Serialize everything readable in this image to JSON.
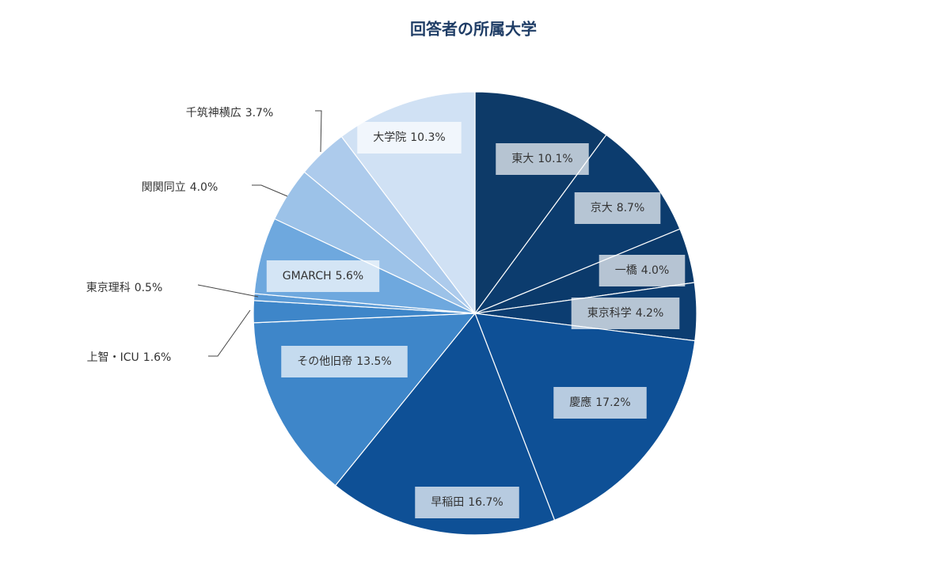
{
  "chart_data": {
    "type": "pie",
    "title": "回答者の所属大学",
    "categories": [
      "東大",
      "京大",
      "一橋",
      "東京科学",
      "慶應",
      "早稲田",
      "その他旧帝",
      "上智・ICU",
      "東京理科",
      "GMARCH",
      "関関同立",
      "千筑神横広",
      "大学院"
    ],
    "values": [
      10.1,
      8.7,
      4.0,
      4.2,
      17.2,
      16.7,
      13.5,
      1.6,
      0.5,
      5.6,
      4.0,
      3.7,
      10.3
    ],
    "value_labels": [
      "10.1%",
      "8.7%",
      "4.0%",
      "4.2%",
      "17.2%",
      "16.7%",
      "13.5%",
      "1.6%",
      "0.5%",
      "5.6%",
      "4.0%",
      "3.7%",
      "10.3%"
    ],
    "colors": [
      "#0d3a68",
      "#0c3c6e",
      "#0b3a6b",
      "#0c3d71",
      "#0e5096",
      "#0e5096",
      "#3e86c9",
      "#3e86c9",
      "#5a9ad6",
      "#6ea8de",
      "#9cc2e8",
      "#adcbec",
      "#d0e1f4"
    ]
  }
}
